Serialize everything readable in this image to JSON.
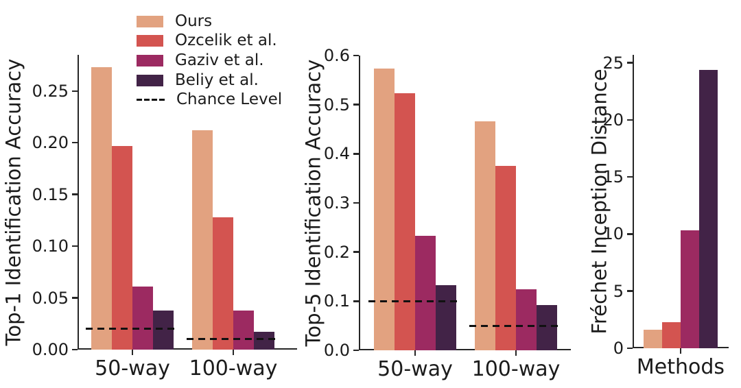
{
  "figure": {
    "background": "#ffffff",
    "text_color": "#1b1b1b",
    "spine_color": "#262626"
  },
  "legend": {
    "position": "upper-left",
    "items": [
      {
        "label": "Ours",
        "color": "#E2A280",
        "type": "box"
      },
      {
        "label": "Ozcelik et al.",
        "color": "#D35450",
        "type": "box"
      },
      {
        "label": "Gaziv et al.",
        "color": "#9C2A61",
        "type": "box"
      },
      {
        "label": "Beliy et al.",
        "color": "#422347",
        "type": "box"
      },
      {
        "label": "Chance Level",
        "color": "#111111",
        "type": "dashed-line"
      }
    ]
  },
  "chart_data": [
    {
      "type": "bar",
      "ylabel": "Top-1 Identification Accuracy",
      "xlabel": "",
      "categories": [
        "50-way",
        "100-way"
      ],
      "series": [
        {
          "name": "Ours",
          "values": [
            0.273,
            0.212
          ]
        },
        {
          "name": "Ozcelik et al.",
          "values": [
            0.197,
            0.128
          ]
        },
        {
          "name": "Gaziv et al.",
          "values": [
            0.061,
            0.038
          ]
        },
        {
          "name": "Beliy et al.",
          "values": [
            0.038,
            0.017
          ]
        }
      ],
      "chance_levels": [
        0.02,
        0.01
      ],
      "ylim": [
        0,
        0.285
      ],
      "yticks": [
        0,
        0.05,
        0.1,
        0.15,
        0.2,
        0.25
      ],
      "ytick_labels": [
        "0.00",
        "0.05",
        "0.10",
        "0.15",
        "0.20",
        "0.25"
      ],
      "grid": false,
      "legend_position": "upper-left-of-figure"
    },
    {
      "type": "bar",
      "ylabel": "Top-5 Identification Accuracy",
      "xlabel": "",
      "categories": [
        "50-way",
        "100-way"
      ],
      "series": [
        {
          "name": "Ours",
          "values": [
            0.574,
            0.466
          ]
        },
        {
          "name": "Ozcelik et al.",
          "values": [
            0.523,
            0.376
          ]
        },
        {
          "name": "Gaziv et al.",
          "values": [
            0.233,
            0.124
          ]
        },
        {
          "name": "Beliy et al.",
          "values": [
            0.132,
            0.092
          ]
        }
      ],
      "chance_levels": [
        0.1,
        0.05
      ],
      "ylim": [
        0,
        0.6
      ],
      "yticks": [
        0,
        0.1,
        0.2,
        0.3,
        0.4,
        0.5,
        0.6
      ],
      "ytick_labels": [
        "0.0",
        "0.1",
        "0.2",
        "0.3",
        "0.4",
        "0.5",
        "0.6"
      ],
      "grid": false
    },
    {
      "type": "bar",
      "ylabel": "Fréchet Inception Distance",
      "xlabel": "",
      "categories": [
        "Methods"
      ],
      "series": [
        {
          "name": "Ours",
          "values": [
            1.6
          ]
        },
        {
          "name": "Ozcelik et al.",
          "values": [
            2.3
          ]
        },
        {
          "name": "Gaziv et al.",
          "values": [
            10.3
          ]
        },
        {
          "name": "Beliy et al.",
          "values": [
            24.4
          ]
        }
      ],
      "chance_levels": null,
      "ylim": [
        0,
        25.7
      ],
      "yticks": [
        0,
        5,
        10,
        15,
        20,
        25
      ],
      "ytick_labels": [
        "0",
        "5",
        "10",
        "15",
        "20",
        "25"
      ],
      "grid": false
    }
  ]
}
